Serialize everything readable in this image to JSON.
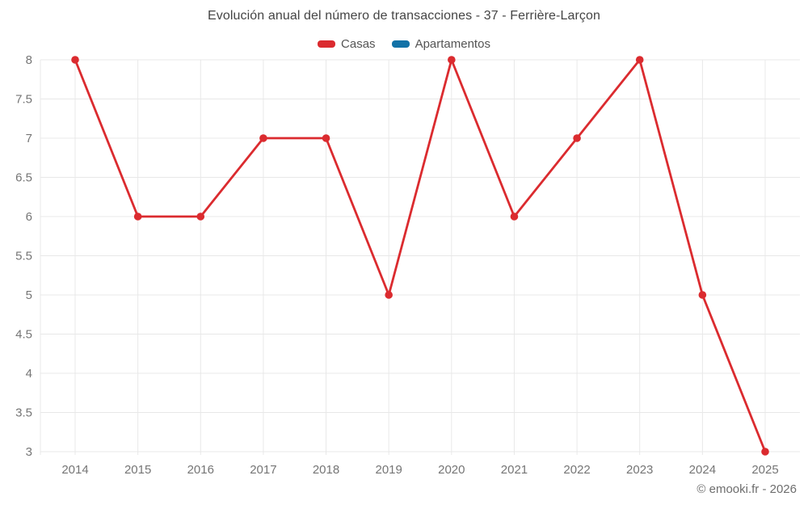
{
  "title": "Evolución anual del número de transacciones - 37 - Ferrière-Larçon",
  "legend": {
    "items": [
      {
        "label": "Casas",
        "color": "#db2b2f"
      },
      {
        "label": "Apartamentos",
        "color": "#1272a7"
      }
    ]
  },
  "footer": {
    "credit": "© emooki.fr - 2026"
  },
  "colors": {
    "grid": "#e8e8e8",
    "axis_text": "#757575",
    "title_text": "#454545",
    "background": "#ffffff"
  },
  "chart_data": {
    "type": "line",
    "title": "Evolución anual del número de transacciones - 37 - Ferrière-Larçon",
    "x": [
      2014,
      2015,
      2016,
      2017,
      2018,
      2019,
      2020,
      2021,
      2022,
      2023,
      2024,
      2025
    ],
    "series": [
      {
        "name": "Casas",
        "color": "#db2b2f",
        "values": [
          8,
          6,
          6,
          7,
          7,
          5,
          8,
          6,
          7,
          8,
          5,
          3
        ]
      },
      {
        "name": "Apartamentos",
        "color": "#1272a7",
        "values": []
      }
    ],
    "ylim": [
      3,
      8
    ],
    "ytick_step": 0.5,
    "grid": true,
    "legend_position": "top",
    "marker": "circle",
    "xlabel": "",
    "ylabel": ""
  }
}
